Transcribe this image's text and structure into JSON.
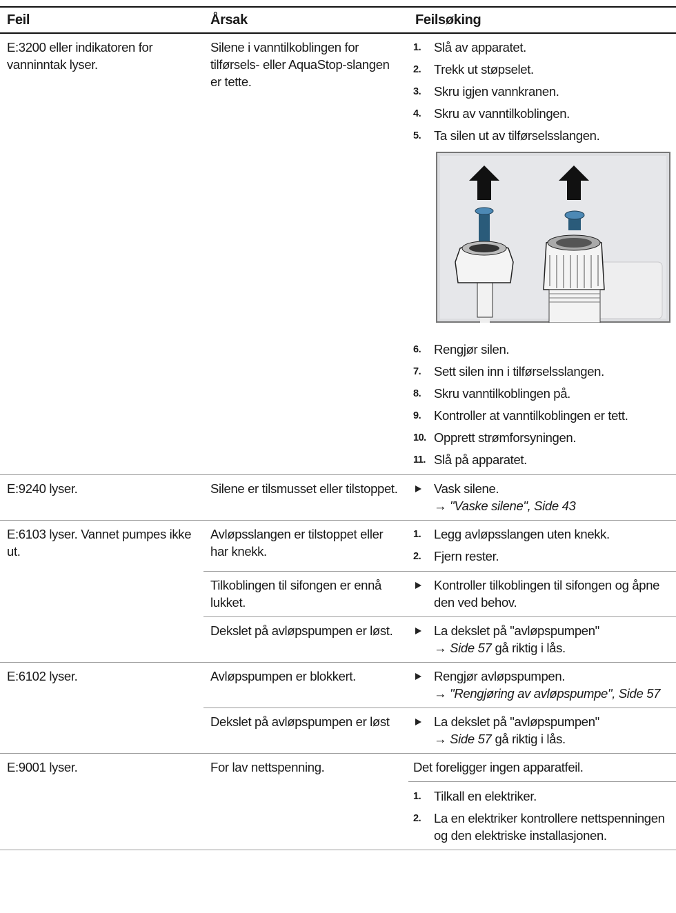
{
  "table": {
    "header": [
      "Feil",
      "Årsak",
      "Feilsøking"
    ],
    "rows": [
      {
        "fault": "E:3200 eller indikatoren for vanninntak lyser.",
        "causes": [
          {
            "cause": "Silene i vanntilkoblingen for tilførsels- eller AquaStop-slangen er tette.",
            "steps": [
              {
                "num": "1.",
                "text": "Slå av apparatet."
              },
              {
                "num": "2.",
                "text": "Trekk ut støpselet."
              },
              {
                "num": "3.",
                "text": "Skru igjen vannkranen."
              },
              {
                "num": "4.",
                "text": "Skru av vanntilkoblingen."
              },
              {
                "num": "5.",
                "text": "Ta silen ut av tilførselsslangen."
              }
            ],
            "steps_after": [
              {
                "num": "6.",
                "text": "Rengjør silen."
              },
              {
                "num": "7.",
                "text": "Sett silen inn i tilførselsslangen."
              },
              {
                "num": "8.",
                "text": "Skru vanntilkoblingen på."
              },
              {
                "num": "9.",
                "text": "Kontroller at vanntilkoblingen er tett."
              },
              {
                "num": "10.",
                "text": "Opprett strømforsyningen."
              },
              {
                "num": "11.",
                "text": "Slå på apparatet."
              }
            ]
          }
        ]
      },
      {
        "fault": "E:9240 lyser.",
        "causes": [
          {
            "cause": "Silene er tilsmusset eller til­stoppet.",
            "steps": [
              {
                "text": "Vask silene.",
                "ref": [
                  {
                    "text": "→"
                  },
                  {
                    "text": "\"Vaske silene\", Side 43",
                    "italic": true
                  }
                ]
              }
            ]
          }
        ]
      },
      {
        "fault": "E:6103 lyser. Vannet pum­pes ikke ut.",
        "causes": [
          {
            "cause": "Avløpsslangen er tilstoppet eller har knekk.",
            "steps": [
              {
                "num": "1.",
                "text": "Legg avløpsslangen uten knekk."
              },
              {
                "num": "2.",
                "text": "Fjern rester."
              }
            ]
          },
          {
            "cause": "Tilkoblingen til sifongen er ennå lukket.",
            "steps": [
              {
                "text": "Kontroller tilkoblingen til sifongen og åpne den ved behov."
              }
            ]
          },
          {
            "cause": "Dekslet på avløpspumpen er løst.",
            "steps": [
              {
                "text": "La dekslet på \"avløpspumpen\"",
                "ref": [
                  {
                    "text": "→"
                  },
                  {
                    "text": "Side 57",
                    "italic": true
                  },
                  {
                    "text": "gå riktig i lås."
                  }
                ]
              }
            ]
          }
        ]
      },
      {
        "fault": "E:6102 lyser.",
        "causes": [
          {
            "cause": "Avløpspumpen er blokkert.",
            "steps": [
              {
                "text": "Rengjør avløpspumpen.",
                "ref": [
                  {
                    "text": "→"
                  },
                  {
                    "text": "\"Rengjøring av avløpspumpe\", Side 57",
                    "italic": true
                  }
                ]
              }
            ]
          },
          {
            "cause": "Dekslet på avløpspumpen er løst",
            "steps": [
              {
                "text": "La dekslet på \"avløpspumpen\"",
                "ref": [
                  {
                    "text": "→"
                  },
                  {
                    "text": "Side 57",
                    "italic": true
                  },
                  {
                    "text": "gå riktig i lås."
                  }
                ]
              }
            ]
          }
        ]
      },
      {
        "fault": "E:9001 lyser.",
        "causes": [
          {
            "cause": "For lav nettspenning.",
            "intro": "Det foreligger ingen apparatfeil.",
            "steps": [
              {
                "num": "1.",
                "text": "Tilkall en elektriker."
              },
              {
                "num": "2.",
                "text": "La en elektriker kontrollere nett­spenningen og den elektriske in­stallasjonen."
              }
            ]
          }
        ]
      }
    ]
  }
}
